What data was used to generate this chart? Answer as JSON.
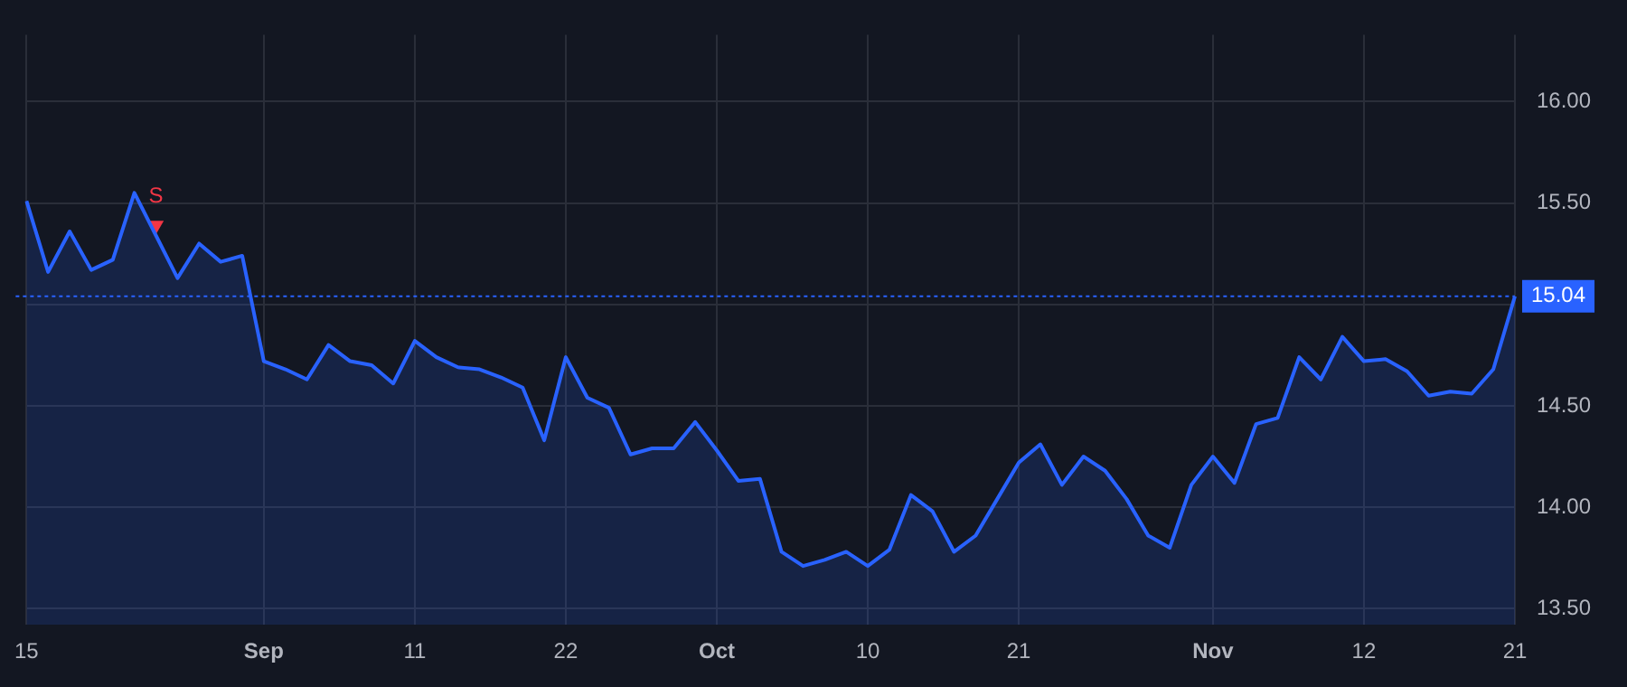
{
  "chart_data": {
    "type": "area",
    "categories": [
      "15",
      null,
      null,
      null,
      null,
      null,
      null,
      null,
      null,
      null,
      null,
      "Sep",
      null,
      null,
      null,
      null,
      null,
      null,
      "11",
      null,
      null,
      null,
      null,
      null,
      null,
      "22",
      null,
      null,
      null,
      null,
      null,
      null,
      "Oct",
      null,
      null,
      null,
      null,
      null,
      null,
      "10",
      null,
      null,
      null,
      null,
      null,
      null,
      "21",
      null,
      null,
      null,
      null,
      null,
      null,
      null,
      null,
      "Nov",
      null,
      null,
      null,
      null,
      null,
      null,
      "12",
      null,
      null,
      null,
      null,
      null,
      null,
      "21"
    ],
    "series": [
      {
        "color": "#2962ff",
        "values": [
          15.51,
          15.16,
          15.36,
          15.17,
          15.22,
          15.55,
          15.34,
          15.13,
          15.3,
          15.21,
          15.24,
          14.72,
          14.68,
          14.63,
          14.8,
          14.72,
          14.7,
          14.61,
          14.82,
          14.74,
          14.69,
          14.68,
          14.64,
          14.59,
          14.33,
          14.74,
          14.54,
          14.49,
          14.26,
          14.29,
          14.29,
          14.42,
          14.28,
          14.13,
          14.14,
          13.78,
          13.71,
          13.74,
          13.78,
          13.71,
          13.79,
          14.06,
          13.98,
          13.78,
          13.86,
          14.04,
          14.22,
          14.31,
          14.11,
          14.25,
          14.18,
          14.04,
          13.86,
          13.8,
          14.11,
          14.25,
          14.12,
          14.41,
          14.44,
          14.74,
          14.63,
          14.84,
          14.72,
          14.73,
          14.67,
          14.55,
          14.57,
          14.56,
          14.68,
          15.04
        ]
      },
      {
        "type": "scatter",
        "color": "#f23645",
        "marker": "triangle",
        "values": [
          null,
          null,
          null,
          null,
          null,
          null,
          15.39,
          null,
          null,
          null,
          null,
          null,
          null,
          null,
          null,
          null,
          null,
          null,
          null,
          null,
          null,
          null,
          null,
          null,
          null,
          null,
          null,
          null,
          null,
          null,
          null,
          null,
          null,
          null,
          null,
          null,
          null,
          null,
          null,
          null,
          null,
          null,
          null,
          null,
          null,
          null,
          null,
          null,
          null,
          null,
          null,
          null,
          null,
          null,
          null,
          null,
          null,
          null,
          null,
          null,
          null,
          null,
          null,
          null,
          null,
          null,
          null,
          null,
          null,
          null
        ]
      }
    ],
    "annotations": [
      "S"
    ],
    "ref_lines": [
      {
        "axis": "y",
        "value": 15.04,
        "label": "15.04",
        "color": "#2962ff",
        "line_style": "dotted"
      }
    ],
    "ylim": [
      13.42,
      16.33
    ],
    "yticks": [
      {
        "value": 13.5,
        "label": "13.50"
      },
      {
        "value": 14,
        "label": "14.00"
      },
      {
        "value": 14.5,
        "label": "14.50"
      },
      {
        "value": 15,
        "label": null
      },
      {
        "value": 15.5,
        "label": "15.50"
      },
      {
        "value": 16,
        "label": "16.00"
      }
    ],
    "grid": true,
    "marker": "none",
    "line_style": "solid"
  }
}
